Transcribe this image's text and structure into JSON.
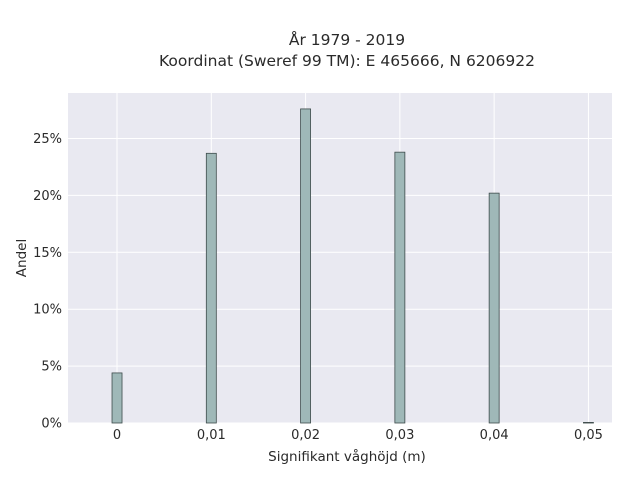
{
  "chart_data": {
    "type": "bar",
    "title": "År 1979 - 2019",
    "subtitle": "Koordinat (Sweref 99 TM): E 465666, N 6206922",
    "xlabel": "Signifikant våghöjd (m)",
    "ylabel": "Andel",
    "x": [
      0,
      0.01,
      0.02,
      0.03,
      0.04,
      0.05
    ],
    "x_tick_labels": [
      "0",
      "0,01",
      "0,02",
      "0,03",
      "0,04",
      "0,05"
    ],
    "values": [
      4.4,
      23.7,
      27.6,
      23.8,
      20.2,
      0.05
    ],
    "y_ticks": [
      0,
      5,
      10,
      15,
      20,
      25
    ],
    "y_tick_labels": [
      "0%",
      "5%",
      "10%",
      "15%",
      "20%",
      "25%"
    ],
    "xlim": [
      -0.0052,
      0.0525
    ],
    "ylim": [
      0,
      29
    ],
    "grid": true,
    "colors": {
      "plot_bg": "#e9e9f1",
      "bar_fill": "#9fb8b8",
      "bar_edge": "#3d4b4b"
    }
  }
}
